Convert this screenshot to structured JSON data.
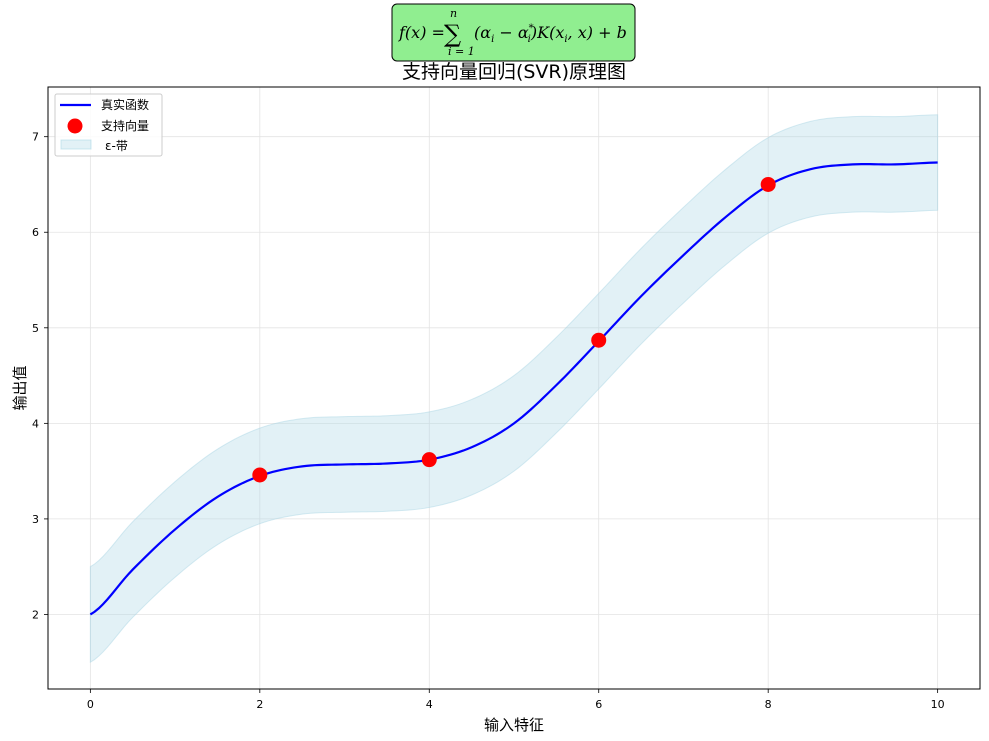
{
  "chart_data": {
    "type": "line",
    "title": "支持向量回归(SVR)原理图",
    "xlabel": "输入特征",
    "ylabel": "输出值",
    "xlim": [
      -0.5,
      10.5
    ],
    "ylim": [
      1.22,
      7.52
    ],
    "xticks": [
      0,
      2,
      4,
      6,
      8,
      10
    ],
    "yticks": [
      2,
      3,
      4,
      5,
      6,
      7
    ],
    "grid": true,
    "legend_position": "top-left",
    "epsilon": 0.5,
    "series": [
      {
        "name": "真实函数",
        "kind": "line",
        "color": "#0000ff",
        "x": [
          0,
          0.5,
          1,
          1.5,
          2,
          2.5,
          3,
          3.5,
          4,
          4.5,
          5,
          5.5,
          6,
          6.5,
          7,
          7.5,
          8,
          8.5,
          9,
          9.5,
          10
        ],
        "y": [
          2.0,
          2.47,
          2.89,
          3.23,
          3.45,
          3.55,
          3.57,
          3.58,
          3.62,
          3.75,
          4.0,
          4.4,
          4.86,
          5.33,
          5.76,
          6.16,
          6.49,
          6.66,
          6.71,
          6.71,
          6.73
        ]
      },
      {
        "name": "支持向量",
        "kind": "scatter",
        "color": "#ff0000",
        "x": [
          2,
          4,
          6,
          8
        ],
        "y": [
          3.46,
          3.62,
          4.87,
          6.5
        ]
      },
      {
        "name": "ε-带",
        "kind": "band",
        "color": "#add8e6"
      }
    ]
  },
  "formula": {
    "lhs": "f(x) = ",
    "sum_upper": "n",
    "sum_lower": "i = 1",
    "alpha": "α",
    "sub_i": "i",
    "star": "*",
    "kernel": "K",
    "var_x": "x",
    "b": "b",
    "box_color": "#90ee90"
  }
}
